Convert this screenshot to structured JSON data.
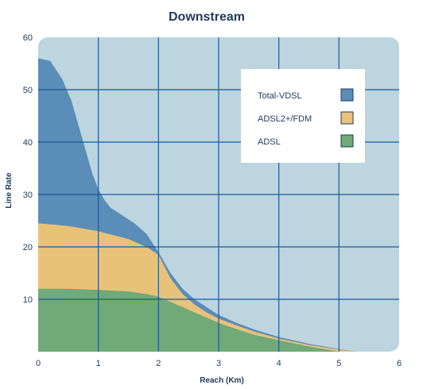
{
  "chart_data": {
    "type": "area",
    "title": "Downstream",
    "xlabel": "Reach (Km)",
    "ylabel": "Line Rate",
    "xlim": [
      0,
      6
    ],
    "ylim": [
      0,
      60
    ],
    "xticks": [
      "0",
      "1",
      "2",
      "3",
      "4",
      "5",
      "6"
    ],
    "yticks": [
      "10",
      "20",
      "30",
      "40",
      "50",
      "60"
    ],
    "grid": true,
    "legend_position": "top-right",
    "background_color": "#bcd5df",
    "grid_color": "#1a5a96",
    "series": [
      {
        "name": "Total-VDSL",
        "color": "#5a8db7",
        "x": [
          0,
          0.2,
          0.4,
          0.55,
          0.7,
          0.8,
          0.9,
          1.0,
          1.1,
          1.2,
          1.4,
          1.6,
          1.8,
          2.0,
          2.2,
          2.4,
          2.6,
          2.8,
          3.0,
          3.3,
          3.6,
          4.0,
          4.5,
          5.0,
          5.3
        ],
        "values": [
          56,
          55.5,
          52,
          48,
          42,
          38,
          34,
          31,
          29,
          27.5,
          26,
          24.5,
          22.5,
          19,
          15,
          12,
          10,
          8.5,
          7,
          5.5,
          4.2,
          2.8,
          1.5,
          0.5,
          0
        ]
      },
      {
        "name": "ADSL2+/FDM",
        "color": "#e9c27a",
        "x": [
          0,
          0.5,
          1.0,
          1.5,
          1.8,
          2.0,
          2.2,
          2.4,
          2.6,
          2.8,
          3.0,
          3.3,
          3.6,
          4.0,
          4.5,
          5.0,
          5.3
        ],
        "values": [
          24.5,
          24,
          23,
          21.5,
          20,
          18.5,
          14,
          11,
          9,
          7.5,
          6.3,
          5,
          3.8,
          2.5,
          1.3,
          0.4,
          0
        ]
      },
      {
        "name": "ADSL",
        "color": "#6faa78",
        "x": [
          0,
          0.5,
          1.0,
          1.5,
          1.8,
          2.0,
          2.2,
          2.5,
          2.8,
          3.0,
          3.3,
          3.6,
          4.0,
          4.5,
          5.0
        ],
        "values": [
          12,
          12,
          11.8,
          11.5,
          11,
          10.5,
          9.5,
          8,
          6.5,
          5.5,
          4.3,
          3.2,
          2.2,
          1,
          0
        ]
      }
    ]
  }
}
